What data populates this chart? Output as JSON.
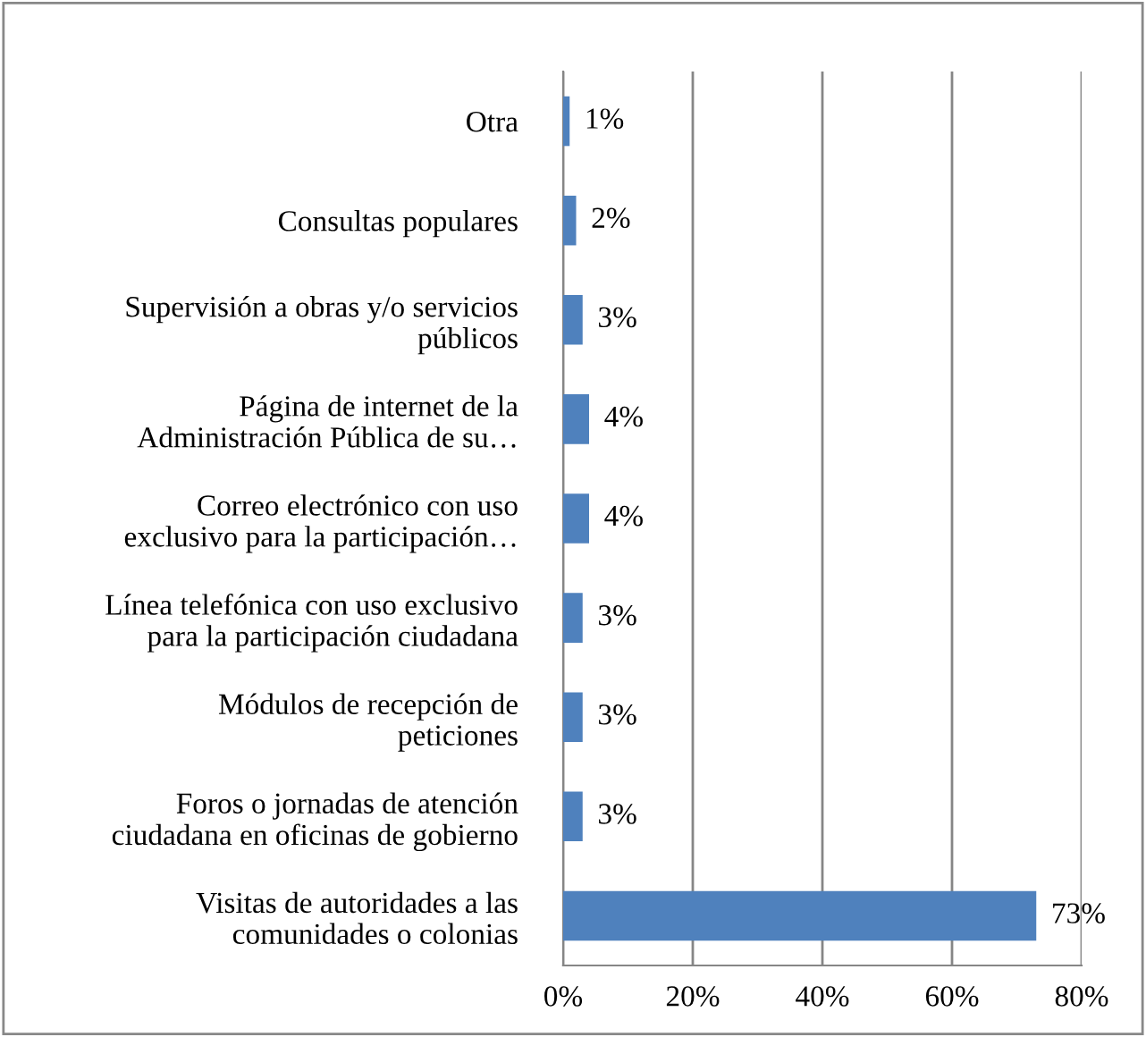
{
  "chart_data": {
    "type": "bar",
    "orientation": "horizontal",
    "categories": [
      "Otra",
      "Consultas populares",
      "Supervisión a obras y/o servicios\npúblicos",
      "Página de internet de la\nAdministración Pública de su…",
      "Correo electrónico con uso\nexclusivo para la participación…",
      "Línea telefónica con uso exclusivo\npara la participación ciudadana",
      "Módulos de recepción de\npeticiones",
      "Foros o jornadas de atención\nciudadana en oficinas de gobierno",
      "Visitas de autoridades a las\ncomunidades o colonias"
    ],
    "values": [
      1,
      2,
      3,
      4,
      4,
      3,
      3,
      3,
      73
    ],
    "value_labels": [
      "1%",
      "2%",
      "3%",
      "4%",
      "4%",
      "3%",
      "3%",
      "3%",
      "73%"
    ],
    "color": "#4f81bd",
    "xlim": [
      0,
      80
    ],
    "xticks": [
      {
        "value": 0,
        "label": "0%"
      },
      {
        "value": 20,
        "label": "20%"
      },
      {
        "value": 40,
        "label": "40%"
      },
      {
        "value": 60,
        "label": "60%"
      },
      {
        "value": 80,
        "label": "80%"
      }
    ],
    "grid": "x",
    "legend": false
  }
}
